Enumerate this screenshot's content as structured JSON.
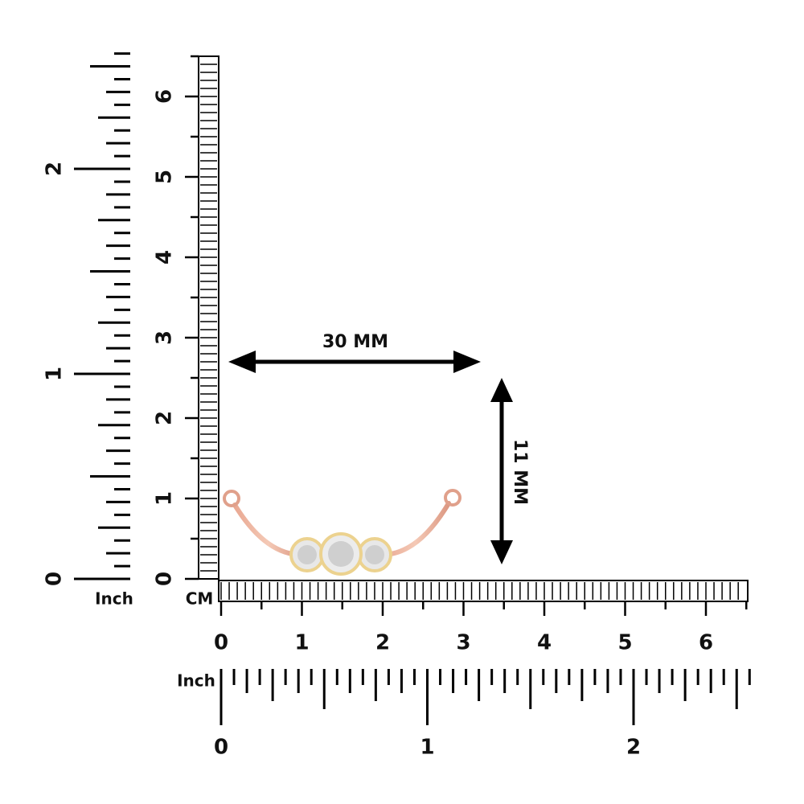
{
  "vertical_inch_ruler": {
    "unit": "Inch",
    "labels": [
      0,
      1,
      2
    ]
  },
  "vertical_cm_ruler": {
    "labels": [
      0,
      1,
      2,
      3,
      4,
      5,
      6
    ]
  },
  "horizontal_cm_ruler": {
    "unit": "CM",
    "labels": [
      0,
      1,
      2,
      3,
      4,
      5,
      6
    ]
  },
  "horizontal_inch_ruler": {
    "unit": "Inch",
    "labels": [
      0,
      1,
      2
    ]
  },
  "dimensions": {
    "width": "30 MM",
    "height": "11 MM"
  }
}
